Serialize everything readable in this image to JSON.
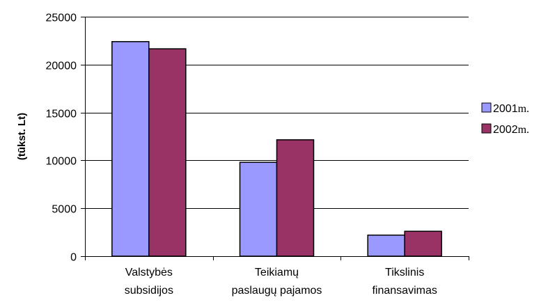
{
  "chart_data": {
    "type": "bar",
    "categories": [
      [
        "Valstybės",
        "subsidijos"
      ],
      [
        "Teikiamų",
        "paslaugų pajamos"
      ],
      [
        "Tikslinis",
        "finansavimas"
      ]
    ],
    "series": [
      {
        "name": "2001",
        "unit": "m.",
        "color": "#9999ff",
        "values": [
          22400,
          9800,
          2200
        ]
      },
      {
        "name": "2002",
        "unit": "m.",
        "color": "#993366",
        "values": [
          21650,
          12150,
          2600
        ]
      }
    ],
    "ylabel": "(tūkst. Lt)",
    "ylim": [
      0,
      25000
    ],
    "yticks": [
      "0",
      "5000",
      "10000",
      "15000",
      "20000",
      "25000"
    ],
    "grid": true,
    "legend_position": "right"
  }
}
